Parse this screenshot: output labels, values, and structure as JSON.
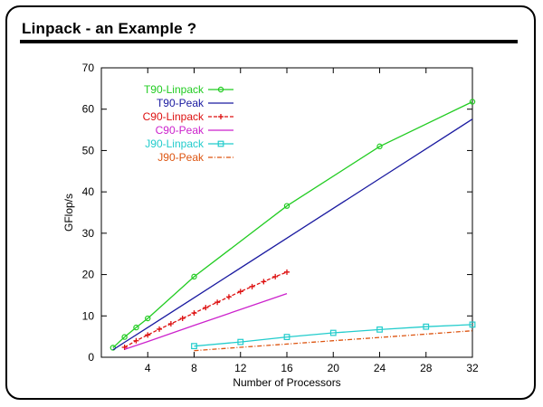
{
  "slide": {
    "title": "Linpack - an Example ?"
  },
  "chart_data": {
    "type": "line",
    "title": "",
    "xlabel": "Number of Processors",
    "ylabel": "GFlop/s",
    "xlim": [
      0,
      32
    ],
    "ylim": [
      0,
      70
    ],
    "xticks": [
      4,
      8,
      12,
      16,
      20,
      24,
      28,
      32
    ],
    "yticks": [
      0,
      10,
      20,
      30,
      40,
      50,
      60,
      70
    ],
    "grid": false,
    "legend_position": "top-left",
    "series": [
      {
        "name": "T90-Linpack",
        "color": "#22cc22",
        "marker": "circle",
        "dash": "",
        "x": [
          1,
          2,
          3,
          4,
          8,
          16,
          24,
          32
        ],
        "y": [
          2.3,
          4.9,
          7.2,
          9.4,
          19.5,
          36.6,
          51.0,
          61.8
        ]
      },
      {
        "name": "T90-Peak",
        "color": "#1a1aa0",
        "marker": "none",
        "dash": "",
        "x": [
          1,
          2,
          4,
          8,
          16,
          24,
          32
        ],
        "y": [
          1.8,
          3.6,
          7.2,
          14.4,
          28.8,
          43.2,
          57.6
        ]
      },
      {
        "name": "C90-Linpack",
        "color": "#dd1111",
        "marker": "plus",
        "dash": "4,2",
        "x": [
          2,
          3,
          4,
          5,
          6,
          7,
          8,
          9,
          10,
          11,
          12,
          13,
          14,
          15,
          16
        ],
        "y": [
          2.4,
          4.0,
          5.4,
          6.8,
          8.1,
          9.4,
          10.7,
          12.0,
          13.3,
          14.6,
          15.9,
          17.1,
          18.3,
          19.5,
          20.6
        ]
      },
      {
        "name": "C90-Peak",
        "color": "#cc22cc",
        "marker": "none",
        "dash": "",
        "x": [
          2,
          4,
          8,
          16
        ],
        "y": [
          1.9,
          3.8,
          7.7,
          15.4
        ]
      },
      {
        "name": "J90-Linpack",
        "color": "#22cccc",
        "marker": "square",
        "dash": "",
        "x": [
          8,
          12,
          16,
          20,
          24,
          28,
          32
        ],
        "y": [
          2.7,
          3.7,
          4.9,
          5.9,
          6.7,
          7.4,
          7.9
        ]
      },
      {
        "name": "J90-Peak",
        "color": "#dd5511",
        "marker": "none",
        "dash": "5,2,1,2",
        "x": [
          8,
          12,
          16,
          20,
          24,
          28,
          32
        ],
        "y": [
          1.6,
          2.4,
          3.2,
          4.0,
          4.8,
          5.6,
          6.4
        ]
      }
    ]
  }
}
